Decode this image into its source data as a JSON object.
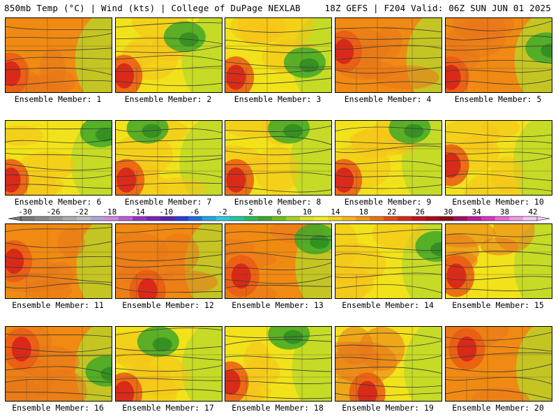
{
  "header": {
    "left": "850mb Temp (°C) | Wind (kts) | College of DuPage NEXLAB",
    "right": "18Z GEFS | F204 Valid: 06Z SUN JUN 01 2025"
  },
  "member_label_prefix": "Ensemble Member:",
  "members": [
    {
      "label": "Ensemble Member: 1",
      "warmth": 0.66,
      "hot": [
        [
          0.05,
          0.75
        ]
      ],
      "cool": []
    },
    {
      "label": "Ensemble Member: 2",
      "warmth": 0.48,
      "hot": [
        [
          0.08,
          0.78
        ]
      ],
      "cool": [
        [
          0.65,
          0.25
        ]
      ]
    },
    {
      "label": "Ensemble Member: 3",
      "warmth": 0.5,
      "hot": [
        [
          0.1,
          0.8
        ]
      ],
      "cool": [
        [
          0.75,
          0.6
        ]
      ]
    },
    {
      "label": "Ensemble Member: 4",
      "warmth": 0.72,
      "hot": [
        [
          0.08,
          0.45
        ]
      ],
      "cool": []
    },
    {
      "label": "Ensemble Member: 5",
      "warmth": 0.62,
      "hot": [
        [
          0.05,
          0.8
        ]
      ],
      "cool": [
        [
          0.95,
          0.4
        ]
      ]
    },
    {
      "label": "Ensemble Member: 6",
      "warmth": 0.45,
      "hot": [
        [
          0.05,
          0.8
        ]
      ],
      "cool": [
        [
          0.9,
          0.15
        ]
      ]
    },
    {
      "label": "Ensemble Member: 7",
      "warmth": 0.38,
      "hot": [
        [
          0.1,
          0.8
        ]
      ],
      "cool": [
        [
          0.3,
          0.1
        ]
      ]
    },
    {
      "label": "Ensemble Member: 8",
      "warmth": 0.42,
      "hot": [
        [
          0.1,
          0.8
        ]
      ],
      "cool": [
        [
          0.6,
          0.1
        ]
      ]
    },
    {
      "label": "Ensemble Member: 9",
      "warmth": 0.5,
      "hot": [
        [
          0.08,
          0.8
        ]
      ],
      "cool": [
        [
          0.7,
          0.1
        ]
      ]
    },
    {
      "label": "Ensemble Member: 10",
      "warmth": 0.55,
      "hot": [
        [
          0.05,
          0.6
        ]
      ],
      "cool": []
    },
    {
      "label": "Ensemble Member: 11",
      "warmth": 0.72,
      "hot": [
        [
          0.08,
          0.5
        ]
      ],
      "cool": []
    },
    {
      "label": "Ensemble Member: 12",
      "warmth": 0.62,
      "hot": [
        [
          0.3,
          0.9
        ]
      ],
      "cool": []
    },
    {
      "label": "Ensemble Member: 13",
      "warmth": 0.68,
      "hot": [
        [
          0.15,
          0.7
        ]
      ],
      "cool": [
        [
          0.85,
          0.2
        ]
      ]
    },
    {
      "label": "Ensemble Member: 14",
      "warmth": 0.5,
      "hot": [],
      "cool": [
        [
          0.95,
          0.3
        ]
      ]
    },
    {
      "label": "Ensemble Member: 15",
      "warmth": 0.6,
      "hot": [
        [
          0.1,
          0.7
        ]
      ],
      "cool": []
    },
    {
      "label": "Ensemble Member: 16",
      "warmth": 0.66,
      "hot": [
        [
          0.15,
          0.3
        ]
      ],
      "cool": [
        [
          0.95,
          0.6
        ]
      ]
    },
    {
      "label": "Ensemble Member: 17",
      "warmth": 0.48,
      "hot": [
        [
          0.08,
          0.9
        ]
      ],
      "cool": [
        [
          0.4,
          0.2
        ]
      ]
    },
    {
      "label": "Ensemble Member: 18",
      "warmth": 0.52,
      "hot": [
        [
          0.05,
          0.75
        ]
      ],
      "cool": [
        [
          0.6,
          0.1
        ]
      ]
    },
    {
      "label": "Ensemble Member: 19",
      "warmth": 0.6,
      "hot": [
        [
          0.3,
          0.9
        ]
      ],
      "cool": []
    },
    {
      "label": "Ensemble Member: 20",
      "warmth": 0.7,
      "hot": [
        [
          0.2,
          0.3
        ]
      ],
      "cool": []
    }
  ],
  "colorbar": {
    "ticks": [
      "-30",
      "-26",
      "-22",
      "-18",
      "-14",
      "-10",
      "-6",
      "-2",
      "2",
      "6",
      "10",
      "14",
      "18",
      "22",
      "26",
      "30",
      "34",
      "38",
      "42"
    ],
    "colors": [
      "#7a7a7a",
      "#8a8a8a",
      "#9a9a9a",
      "#aeaeae",
      "#c0c0c0",
      "#b8a4d8",
      "#d18ae6",
      "#c05ad6",
      "#9b30c8",
      "#7b23b5",
      "#5a24b0",
      "#2f3ad8",
      "#1f6fe0",
      "#23a8e8",
      "#28d0e0",
      "#22c9a6",
      "#2bbd5a",
      "#3fa828",
      "#6ec21e",
      "#a4d622",
      "#dbe62a",
      "#f2f01e",
      "#f7d71a",
      "#f5b816",
      "#f19a14",
      "#ea7412",
      "#e24a12",
      "#d82a14",
      "#c4141a",
      "#a80e18",
      "#8a0a14",
      "#a01060",
      "#c018a0",
      "#d838c0",
      "#e86ad4",
      "#f29ae6",
      "#f8c8f2"
    ]
  },
  "colors": {
    "hot": "#d8231a",
    "warm": "#f08a12",
    "mild": "#f2e21a",
    "cool_green": "#3fa828",
    "lime": "#b5d82a",
    "contour": "#3a3a3a",
    "border": "#000000"
  }
}
